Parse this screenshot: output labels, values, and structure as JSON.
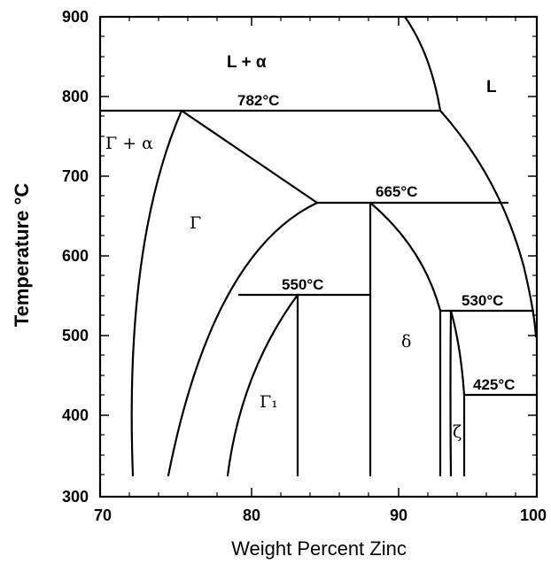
{
  "axes": {
    "x_label": "Weight Percent Zinc",
    "y_label": "Temperature °C",
    "x_ticks": [
      "70",
      "80",
      "90",
      "100"
    ],
    "y_ticks": [
      "300",
      "400",
      "500",
      "600",
      "700",
      "800",
      "900"
    ]
  },
  "isotherms": [
    {
      "label": "782°C",
      "temp": 782
    },
    {
      "label": "665°C",
      "temp": 665
    },
    {
      "label": "550°C",
      "temp": 550
    },
    {
      "label": "530°C",
      "temp": 530
    },
    {
      "label": "425°C",
      "temp": 425
    }
  ],
  "phases": {
    "l_alpha": "L + α",
    "liquid": "L",
    "gamma_alpha": "Γ + α",
    "gamma": "Γ",
    "gamma1": "Γ₁",
    "delta": "δ",
    "zeta": "ζ"
  }
}
